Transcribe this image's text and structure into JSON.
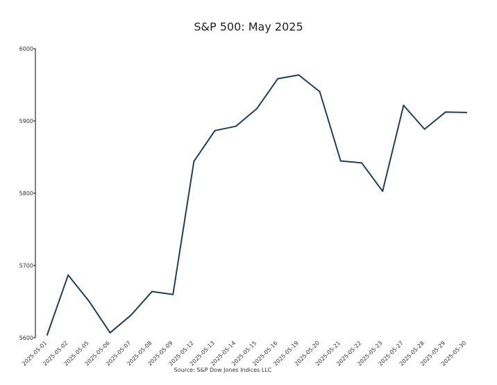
{
  "chart_data": {
    "type": "line",
    "title": "S&P 500: May 2025",
    "xlabel": "",
    "ylabel": "",
    "source": "Source: S&P Dow Jones Indices LLC",
    "x": [
      "2025-05-01",
      "2025-05-02",
      "2025-05-05",
      "2025-05-06",
      "2025-05-07",
      "2025-05-08",
      "2025-05-09",
      "2025-05-12",
      "2025-05-13",
      "2025-05-14",
      "2025-05-15",
      "2025-05-16",
      "2025-05-19",
      "2025-05-20",
      "2025-05-21",
      "2025-05-22",
      "2025-05-23",
      "2025-05-27",
      "2025-05-28",
      "2025-05-29",
      "2025-05-30"
    ],
    "series": [
      {
        "values": [
          5604.1,
          5686.7,
          5650.4,
          5606.9,
          5631.3,
          5663.9,
          5659.9,
          5844.2,
          5886.6,
          5892.6,
          5916.9,
          5958.4,
          5963.6,
          5940.5,
          5844.6,
          5842.0,
          5802.8,
          5921.5,
          5888.6,
          5912.2,
          5911.7
        ]
      }
    ],
    "ylim": [
      5600,
      6000
    ],
    "yticks": [
      5600,
      5700,
      5800,
      5900,
      6000
    ],
    "grid": false,
    "line_color": "#1f3d5c"
  }
}
